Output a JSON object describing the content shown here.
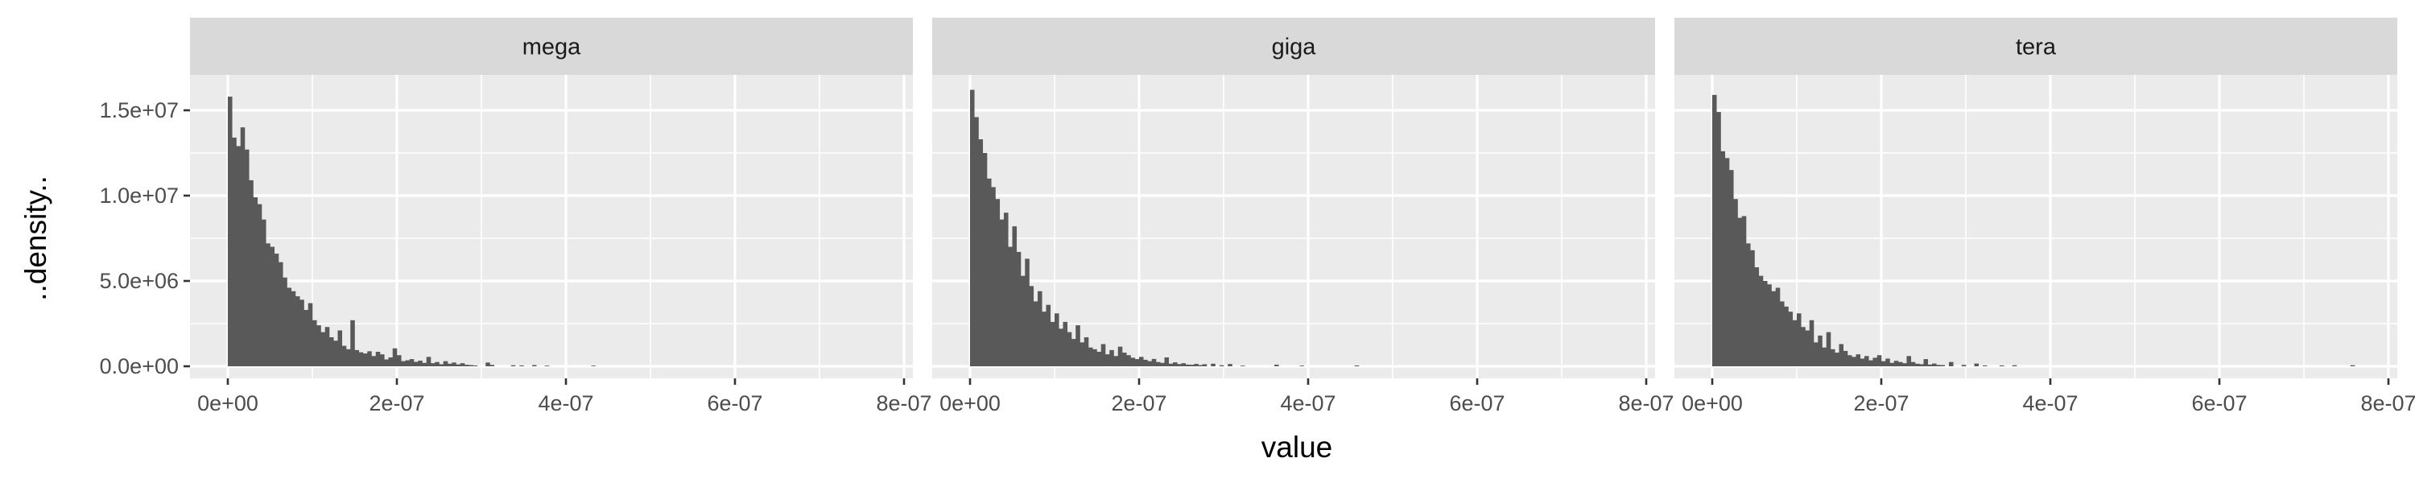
{
  "chart_data": {
    "type": "bar",
    "facet_type": "histogram",
    "xlabel": "value",
    "ylabel": "..density..",
    "xlim": [
      0,
      8e-07
    ],
    "ylim": [
      0,
      17000000
    ],
    "x_ticks": [
      {
        "value": 0,
        "label": "0e+00"
      },
      {
        "value": 2e-07,
        "label": "2e-07"
      },
      {
        "value": 4e-07,
        "label": "4e-07"
      },
      {
        "value": 6e-07,
        "label": "6e-07"
      },
      {
        "value": 8e-07,
        "label": "8e-07"
      }
    ],
    "y_ticks": [
      {
        "value": 0,
        "label": "0.0e+00"
      },
      {
        "value": 5000000,
        "label": "5.0e+06"
      },
      {
        "value": 10000000,
        "label": "1.0e+07"
      },
      {
        "value": 15000000,
        "label": "1.5e+07"
      }
    ],
    "bin_width": 5e-09,
    "grid": true,
    "bar_color": "#595959",
    "panel_background": "#ebebeb",
    "strip_background": "#d9d9d9",
    "panels": [
      {
        "strip_label": "mega",
        "bars": [
          [
            0,
            15800000
          ],
          [
            5e-09,
            13400000
          ],
          [
            1e-08,
            12900000
          ],
          [
            1.5e-08,
            14000000
          ],
          [
            2e-08,
            12700000
          ],
          [
            2.5e-08,
            10900000
          ],
          [
            3e-08,
            9900000
          ],
          [
            3.5e-08,
            9500000
          ],
          [
            4e-08,
            8600000
          ],
          [
            4.5e-08,
            7200000
          ],
          [
            5e-08,
            7000000
          ],
          [
            5.5e-08,
            6600000
          ],
          [
            6e-08,
            6100000
          ],
          [
            6.5e-08,
            5200000
          ],
          [
            7e-08,
            4600000
          ],
          [
            7.5e-08,
            4400000
          ],
          [
            8e-08,
            4100000
          ],
          [
            8.5e-08,
            3900000
          ],
          [
            9e-08,
            3300000
          ],
          [
            9.5e-08,
            3700000
          ],
          [
            1e-07,
            2700000
          ],
          [
            1.05e-07,
            2400000
          ],
          [
            1.1e-07,
            2000000
          ],
          [
            1.15e-07,
            2300000
          ],
          [
            1.2e-07,
            1700000
          ],
          [
            1.25e-07,
            1500000
          ],
          [
            1.3e-07,
            2100000
          ],
          [
            1.35e-07,
            1200000
          ],
          [
            1.4e-07,
            1000000
          ],
          [
            1.45e-07,
            2700000
          ],
          [
            1.5e-07,
            950000
          ],
          [
            1.55e-07,
            820000
          ],
          [
            1.6e-07,
            750000
          ],
          [
            1.65e-07,
            880000
          ],
          [
            1.7e-07,
            600000
          ],
          [
            1.75e-07,
            850000
          ],
          [
            1.8e-07,
            700000
          ],
          [
            1.85e-07,
            400000
          ],
          [
            1.9e-07,
            520000
          ],
          [
            1.95e-07,
            1050000
          ],
          [
            2e-07,
            650000
          ],
          [
            2.05e-07,
            300000
          ],
          [
            2.1e-07,
            350000
          ],
          [
            2.15e-07,
            420000
          ],
          [
            2.2e-07,
            260000
          ],
          [
            2.25e-07,
            330000
          ],
          [
            2.3e-07,
            200000
          ],
          [
            2.35e-07,
            550000
          ],
          [
            2.4e-07,
            180000
          ],
          [
            2.45e-07,
            250000
          ],
          [
            2.5e-07,
            120000
          ],
          [
            2.55e-07,
            300000
          ],
          [
            2.6e-07,
            150000
          ],
          [
            2.65e-07,
            220000
          ],
          [
            2.7e-07,
            110000
          ],
          [
            2.75e-07,
            180000
          ],
          [
            2.8e-07,
            90000
          ],
          [
            2.85e-07,
            70000
          ],
          [
            2.9e-07,
            50000
          ],
          [
            3.05e-07,
            220000
          ],
          [
            3.1e-07,
            80000
          ],
          [
            3.35e-07,
            60000
          ],
          [
            3.45e-07,
            50000
          ],
          [
            3.6e-07,
            70000
          ],
          [
            3.75e-07,
            40000
          ],
          [
            4.3e-07,
            40000
          ]
        ]
      },
      {
        "strip_label": "giga",
        "bars": [
          [
            0,
            16200000
          ],
          [
            5e-09,
            14600000
          ],
          [
            1e-08,
            13300000
          ],
          [
            1.5e-08,
            12500000
          ],
          [
            2e-08,
            11000000
          ],
          [
            2.5e-08,
            10500000
          ],
          [
            3e-08,
            9800000
          ],
          [
            3.5e-08,
            8600000
          ],
          [
            4e-08,
            9000000
          ],
          [
            4.5e-08,
            7000000
          ],
          [
            5e-08,
            8200000
          ],
          [
            5.5e-08,
            6700000
          ],
          [
            6e-08,
            5300000
          ],
          [
            6.5e-08,
            6300000
          ],
          [
            7e-08,
            4700000
          ],
          [
            7.5e-08,
            3800000
          ],
          [
            8e-08,
            4400000
          ],
          [
            8.5e-08,
            3200000
          ],
          [
            9e-08,
            3600000
          ],
          [
            9.5e-08,
            2600000
          ],
          [
            1e-07,
            3100000
          ],
          [
            1.05e-07,
            2200000
          ],
          [
            1.1e-07,
            2600000
          ],
          [
            1.15e-07,
            2000000
          ],
          [
            1.2e-07,
            1600000
          ],
          [
            1.25e-07,
            2400000
          ],
          [
            1.3e-07,
            1400000
          ],
          [
            1.35e-07,
            1700000
          ],
          [
            1.4e-07,
            1100000
          ],
          [
            1.45e-07,
            1000000
          ],
          [
            1.5e-07,
            850000
          ],
          [
            1.55e-07,
            1300000
          ],
          [
            1.6e-07,
            700000
          ],
          [
            1.65e-07,
            950000
          ],
          [
            1.7e-07,
            600000
          ],
          [
            1.75e-07,
            1150000
          ],
          [
            1.8e-07,
            800000
          ],
          [
            1.85e-07,
            650000
          ],
          [
            1.9e-07,
            500000
          ],
          [
            1.95e-07,
            420000
          ],
          [
            2e-07,
            550000
          ],
          [
            2.05e-07,
            380000
          ],
          [
            2.1e-07,
            300000
          ],
          [
            2.15e-07,
            430000
          ],
          [
            2.2e-07,
            250000
          ],
          [
            2.25e-07,
            200000
          ],
          [
            2.3e-07,
            520000
          ],
          [
            2.35e-07,
            150000
          ],
          [
            2.4e-07,
            230000
          ],
          [
            2.45e-07,
            130000
          ],
          [
            2.5e-07,
            180000
          ],
          [
            2.55e-07,
            100000
          ],
          [
            2.6e-07,
            90000
          ],
          [
            2.65e-07,
            140000
          ],
          [
            2.7e-07,
            70000
          ],
          [
            2.75e-07,
            120000
          ],
          [
            2.85e-07,
            150000
          ],
          [
            2.95e-07,
            60000
          ],
          [
            3.05e-07,
            130000
          ],
          [
            3.2e-07,
            40000
          ],
          [
            3.6e-07,
            90000
          ],
          [
            3.9e-07,
            40000
          ],
          [
            4.55e-07,
            50000
          ]
        ]
      },
      {
        "strip_label": "tera",
        "bars": [
          [
            0,
            15900000
          ],
          [
            5e-09,
            14900000
          ],
          [
            1e-08,
            12600000
          ],
          [
            1.5e-08,
            12200000
          ],
          [
            2e-08,
            11500000
          ],
          [
            2.5e-08,
            9800000
          ],
          [
            3e-08,
            8700000
          ],
          [
            3.5e-08,
            8800000
          ],
          [
            4e-08,
            7200000
          ],
          [
            4.5e-08,
            6800000
          ],
          [
            5e-08,
            5800000
          ],
          [
            5.5e-08,
            5300000
          ],
          [
            6e-08,
            5000000
          ],
          [
            6.5e-08,
            4800000
          ],
          [
            7e-08,
            4400000
          ],
          [
            7.5e-08,
            4600000
          ],
          [
            8e-08,
            3800000
          ],
          [
            8.5e-08,
            3500000
          ],
          [
            9e-08,
            3200000
          ],
          [
            9.5e-08,
            2700000
          ],
          [
            1e-07,
            3100000
          ],
          [
            1.05e-07,
            2300000
          ],
          [
            1.1e-07,
            2100000
          ],
          [
            1.15e-07,
            2700000
          ],
          [
            1.2e-07,
            1400000
          ],
          [
            1.25e-07,
            1800000
          ],
          [
            1.3e-07,
            1100000
          ],
          [
            1.35e-07,
            2000000
          ],
          [
            1.4e-07,
            1000000
          ],
          [
            1.45e-07,
            800000
          ],
          [
            1.5e-07,
            1300000
          ],
          [
            1.55e-07,
            900000
          ],
          [
            1.6e-07,
            650000
          ],
          [
            1.65e-07,
            550000
          ],
          [
            1.7e-07,
            700000
          ],
          [
            1.75e-07,
            450000
          ],
          [
            1.8e-07,
            600000
          ],
          [
            1.85e-07,
            350000
          ],
          [
            1.9e-07,
            500000
          ],
          [
            1.95e-07,
            650000
          ],
          [
            2e-07,
            300000
          ],
          [
            2.05e-07,
            450000
          ],
          [
            2.1e-07,
            200000
          ],
          [
            2.15e-07,
            320000
          ],
          [
            2.2e-07,
            250000
          ],
          [
            2.25e-07,
            180000
          ],
          [
            2.3e-07,
            600000
          ],
          [
            2.35e-07,
            250000
          ],
          [
            2.4e-07,
            150000
          ],
          [
            2.45e-07,
            120000
          ],
          [
            2.5e-07,
            420000
          ],
          [
            2.55e-07,
            100000
          ],
          [
            2.6e-07,
            160000
          ],
          [
            2.65e-07,
            80000
          ],
          [
            2.7e-07,
            70000
          ],
          [
            2.8e-07,
            250000
          ],
          [
            2.95e-07,
            80000
          ],
          [
            3.1e-07,
            160000
          ],
          [
            3.2e-07,
            50000
          ],
          [
            3.4e-07,
            50000
          ],
          [
            3.55e-07,
            60000
          ],
          [
            7.55e-07,
            60000
          ]
        ]
      }
    ]
  }
}
